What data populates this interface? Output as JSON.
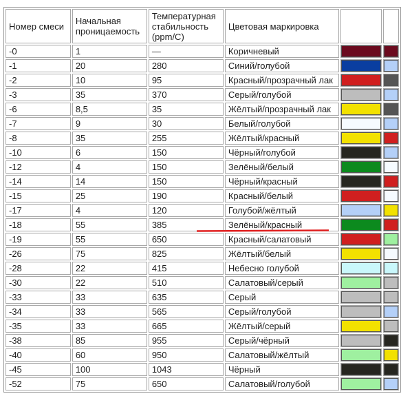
{
  "headers": {
    "mix_number": "Номер смеси",
    "initial_permeability": "Начальная проницаемость",
    "temperature_stability": "Температурная стабильность (ppm/C)",
    "color_code": "Цветовая маркировка"
  },
  "rows": [
    {
      "mix": "-0",
      "permeability": "1",
      "stability": "—",
      "marking": "Коричневый",
      "color1": "#6b0a1e",
      "color2": "#6b0a1e"
    },
    {
      "mix": "-1",
      "permeability": "20",
      "stability": "280",
      "marking": "Синий/голубой",
      "color1": "#0a3ea0",
      "color2": "#b4d0f8"
    },
    {
      "mix": "-2",
      "permeability": "10",
      "stability": "95",
      "marking": "Красный/прозрачный лак",
      "color1": "#d01f1f",
      "color2": "#555555"
    },
    {
      "mix": "-3",
      "permeability": "35",
      "stability": "370",
      "marking": "Серый/голубой",
      "color1": "#bdbdbd",
      "color2": "#b4d0f8"
    },
    {
      "mix": "-6",
      "permeability": "8,5",
      "stability": "35",
      "marking": "Жёлтый/прозрачный лак",
      "color1": "#f2e100",
      "color2": "#555555"
    },
    {
      "mix": "-7",
      "permeability": "9",
      "stability": "30",
      "marking": "Белый/голубой",
      "color1": "#f6fbff",
      "color2": "#b4d0f8"
    },
    {
      "mix": "-8",
      "permeability": "35",
      "stability": "255",
      "marking": "Жёлтый/красный",
      "color1": "#f2e100",
      "color2": "#d01f1f"
    },
    {
      "mix": "-10",
      "permeability": "6",
      "stability": "150",
      "marking": "Чёрный/голубой",
      "color1": "#262620",
      "color2": "#b4d0f8"
    },
    {
      "mix": "-12",
      "permeability": "4",
      "stability": "150",
      "marking": "Зелёный/белый",
      "color1": "#0c8a1e",
      "color2": "#f6fbff"
    },
    {
      "mix": "-14",
      "permeability": "14",
      "stability": "150",
      "marking": "Чёрный/красный",
      "color1": "#262620",
      "color2": "#d01f1f"
    },
    {
      "mix": "-15",
      "permeability": "25",
      "stability": "190",
      "marking": "Красный/белый",
      "color1": "#d01f1f",
      "color2": "#f6fbff"
    },
    {
      "mix": "-17",
      "permeability": "4",
      "stability": "120",
      "marking": "Голубой/жёлтый",
      "color1": "#b4d0f8",
      "color2": "#f2e100"
    },
    {
      "mix": "-18",
      "permeability": "55",
      "stability": "385",
      "marking": "Зелёный/красный",
      "color1": "#0c8a1e",
      "color2": "#d01f1f"
    },
    {
      "mix": "-19",
      "permeability": "55",
      "stability": "650",
      "marking": "Красный/салатовый",
      "color1": "#d01f1f",
      "color2": "#9ff0a0"
    },
    {
      "mix": "-26",
      "permeability": "75",
      "stability": "825",
      "marking": "Жёлтый/белый",
      "color1": "#f2e100",
      "color2": "#f6fbff"
    },
    {
      "mix": "-28",
      "permeability": "22",
      "stability": "415",
      "marking": "Небесно голубой",
      "color1": "#c9f7fb",
      "color2": "#c9f7fb"
    },
    {
      "mix": "-30",
      "permeability": "22",
      "stability": "510",
      "marking": "Салатовый/серый",
      "color1": "#9ff0a0",
      "color2": "#bdbdbd"
    },
    {
      "mix": "-33",
      "permeability": "33",
      "stability": "635",
      "marking": "Серый",
      "color1": "#bdbdbd",
      "color2": "#bdbdbd"
    },
    {
      "mix": "-34",
      "permeability": "33",
      "stability": "565",
      "marking": "Серый/голубой",
      "color1": "#bdbdbd",
      "color2": "#b4d0f8"
    },
    {
      "mix": "-35",
      "permeability": "33",
      "stability": "665",
      "marking": "Жёлтый/серый",
      "color1": "#f2e100",
      "color2": "#bdbdbd"
    },
    {
      "mix": "-38",
      "permeability": "85",
      "stability": "955",
      "marking": "Серый/чёрный",
      "color1": "#bdbdbd",
      "color2": "#262620"
    },
    {
      "mix": "-40",
      "permeability": "60",
      "stability": "950",
      "marking": "Салатовый/жёлтый",
      "color1": "#9ff0a0",
      "color2": "#f2e100"
    },
    {
      "mix": "-45",
      "permeability": "100",
      "stability": "1043",
      "marking": "Чёрный",
      "color1": "#262620",
      "color2": "#262620"
    },
    {
      "mix": "-52",
      "permeability": "75",
      "stability": "650",
      "marking": "Салатовый/голубой",
      "color1": "#9ff0a0",
      "color2": "#b4d0f8"
    }
  ],
  "annotation": {
    "color": "#e02020"
  }
}
